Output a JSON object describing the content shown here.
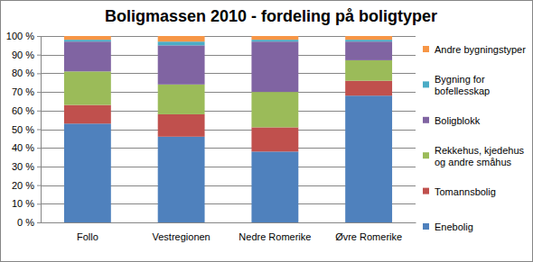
{
  "chart_data": {
    "type": "bar",
    "stacked": true,
    "title": "Boligmassen 2010 - fordeling på boligtyper",
    "categories": [
      "Follo",
      "Vestregionen",
      "Nedre Romerike",
      "Øvre Romerike"
    ],
    "series": [
      {
        "name": "Enebolig",
        "color": "#4f81bd",
        "values": [
          53,
          46,
          38,
          68
        ]
      },
      {
        "name": "Tomannsbolig",
        "color": "#c0504d",
        "values": [
          10,
          12,
          13,
          8
        ]
      },
      {
        "name": "Rekkehus, kjedehus og andre småhus",
        "color": "#9bbb59",
        "values": [
          18,
          16,
          19,
          11
        ]
      },
      {
        "name": "Boligblokk",
        "color": "#8064a2",
        "values": [
          16,
          21,
          27,
          10
        ]
      },
      {
        "name": "Bygning for bofellesskap",
        "color": "#4bacc6",
        "values": [
          1,
          2,
          1,
          1
        ]
      },
      {
        "name": "Andre bygningstyper",
        "color": "#f79646",
        "values": [
          2,
          3,
          2,
          2
        ]
      }
    ],
    "ylim": [
      0,
      100
    ],
    "yticks": [
      {
        "value": 0,
        "label": "0 %"
      },
      {
        "value": 10,
        "label": "10 %"
      },
      {
        "value": 20,
        "label": "20 %"
      },
      {
        "value": 30,
        "label": "30 %"
      },
      {
        "value": 40,
        "label": "40 %"
      },
      {
        "value": 50,
        "label": "50 %"
      },
      {
        "value": 60,
        "label": "60 %"
      },
      {
        "value": 70,
        "label": "70 %"
      },
      {
        "value": 80,
        "label": "80 %"
      },
      {
        "value": 90,
        "label": "90 %"
      },
      {
        "value": 100,
        "label": "100 %"
      }
    ],
    "grid": true,
    "legend": "right"
  }
}
